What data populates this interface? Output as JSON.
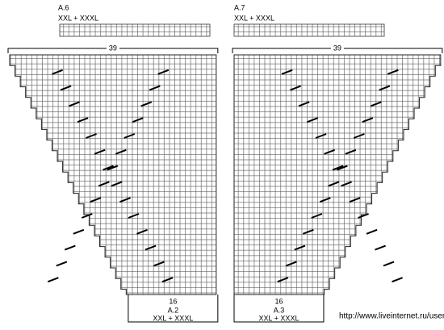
{
  "left": {
    "title": "A.6",
    "size": "XXL + XXXL",
    "width_count": 39,
    "bottom_count": 16,
    "bottom_label": "A.2",
    "bottom_size": "XXL + XXXL"
  },
  "right": {
    "title": "A.7",
    "size": "XXL + XXXL",
    "width_count": 39,
    "bottom_count": 16,
    "bottom_label": "A.3",
    "bottom_size": "XXL + XXXL"
  },
  "watermark": "http://www.liveinternet.ru/users/russa_n/"
}
